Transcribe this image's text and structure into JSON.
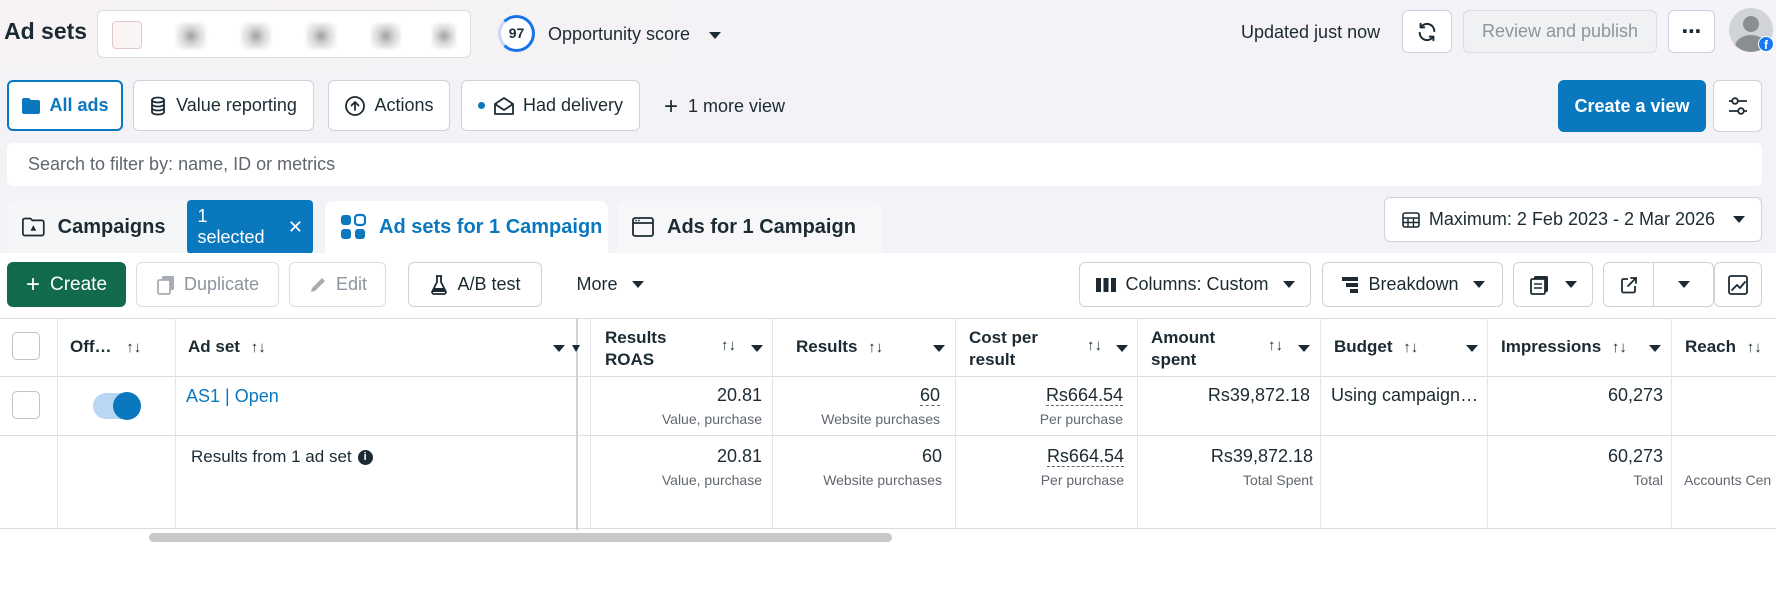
{
  "header": {
    "title": "Ad sets",
    "opportunity_score": "97",
    "opportunity_label": "Opportunity score",
    "updated_text": "Updated just now",
    "review_publish_label": "Review and publish",
    "more_label": "⋯",
    "fb_badge": "f"
  },
  "views": {
    "all_ads": "All ads",
    "value_reporting": "Value reporting",
    "actions": "Actions",
    "had_delivery": "Had delivery",
    "more_view": "1 more view",
    "create_view": "Create a view"
  },
  "search": {
    "placeholder": "Search to filter by: name, ID or metrics"
  },
  "tabs": {
    "campaigns": "Campaigns",
    "selected_badge": "1 selected",
    "ad_sets": "Ad sets for 1 Campaign",
    "ads": "Ads for 1 Campaign"
  },
  "date_range": "Maximum: 2 Feb 2023 - 2 Mar 2026",
  "toolbar": {
    "create": "Create",
    "duplicate": "Duplicate",
    "edit": "Edit",
    "ab_test": "A/B test",
    "more": "More",
    "columns": "Columns: Custom",
    "breakdown": "Breakdown"
  },
  "table": {
    "headers": {
      "off_on": "Off…",
      "ad_set": "Ad set",
      "results_roas_1": "Results",
      "results_roas_2": "ROAS",
      "results": "Results",
      "cost_1": "Cost per",
      "cost_2": "result",
      "amount_1": "Amount",
      "amount_2": "spent",
      "budget": "Budget",
      "impressions": "Impressions",
      "reach": "Reach"
    },
    "sort_icon": "↑↓",
    "row": {
      "ad_set_name": "AS1 | Open",
      "roas": "20.81",
      "roas_sub": "Value, purchase",
      "results": "60",
      "results_sub": "Website purchases",
      "cost": "Rs664.54",
      "cost_sub": "Per purchase",
      "amount": "Rs39,872.18",
      "budget": "Using campaign…",
      "impressions": "60,273"
    },
    "totals": {
      "label": "Results from 1 ad set",
      "roas": "20.81",
      "roas_sub": "Value, purchase",
      "results": "60",
      "results_sub": "Website purchases",
      "cost": "Rs664.54",
      "cost_sub": "Per purchase",
      "amount": "Rs39,872.18",
      "amount_sub": "Total Spent",
      "impressions": "60,273",
      "impressions_sub": "Total",
      "reach_sub": "Accounts Cen"
    }
  }
}
